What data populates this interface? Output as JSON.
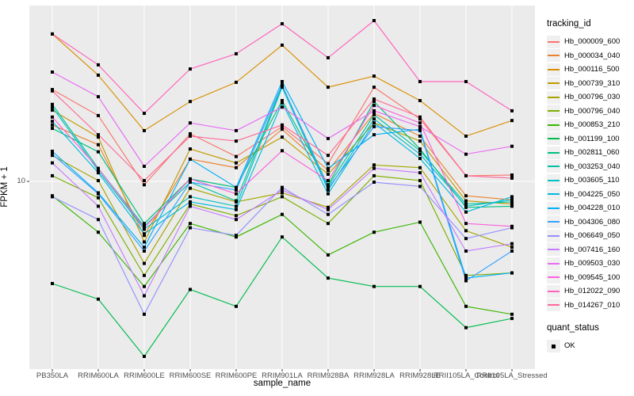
{
  "axes": {
    "x_title": "sample_name",
    "y_title": "FPKM + 1",
    "y_tick_label": "10"
  },
  "legend": {
    "tracking_title": "tracking_id",
    "quant_title": "quant_status",
    "quant_items": [
      {
        "label": "OK"
      }
    ]
  },
  "style": {
    "panel_bg": "#EBEBEB",
    "grid_color": "#FFFFFF",
    "tick_color": "#333333",
    "tick_text_color": "#4D4D4D",
    "marker_color": "#000000",
    "legend_key_bg": "#F0F0F0"
  },
  "chart_data": {
    "type": "line",
    "title": "",
    "xlabel": "sample_name",
    "ylabel": "FPKM + 1",
    "y_scale": "log10",
    "y_major_gridline_value": 10,
    "grid": "major-on-gray-panel",
    "legend_position": "right",
    "legend_title": "tracking_id",
    "point_shape": "filled-black-square",
    "quant_status_legend": {
      "title": "quant_status",
      "items": [
        "OK"
      ]
    },
    "categories": [
      "PB350LA",
      "RRIM600LA",
      "RRIM600LE",
      "RRIM600SE",
      "RRIM600PE",
      "RRIM901LA",
      "RRIM928BA",
      "RRIM928LA",
      "RRIM928LE",
      "RRII105LA_Control",
      "RRII105LA_Stressed"
    ],
    "ylim_approx": [
      1.0,
      85.0
    ],
    "series": [
      {
        "name": "Hb_000009_600",
        "color": "#F8766D",
        "values": [
          30.4,
          22.2,
          9.6,
          17.8,
          13.5,
          19.4,
          12.4,
          31.3,
          21.3,
          10.7,
          10.8
        ]
      },
      {
        "name": "Hb_000034_040",
        "color": "#EA8331",
        "values": [
          19.8,
          15.6,
          5.2,
          13.1,
          11.8,
          18.8,
          11.4,
          22.8,
          17.3,
          8.4,
          8.0
        ]
      },
      {
        "name": "Hb_000116_500",
        "color": "#D89000",
        "values": [
          59.6,
          36.2,
          18.5,
          26.3,
          33.2,
          52.1,
          31.3,
          35.8,
          26.6,
          17.3,
          20.9
        ]
      },
      {
        "name": "Hb_000739_310",
        "color": "#C09B00",
        "values": [
          23.7,
          17.1,
          4.8,
          14.8,
          12.5,
          17.1,
          10.9,
          20.3,
          16.3,
          7.9,
          7.6
        ]
      },
      {
        "name": "Hb_000796_030",
        "color": "#A3A500",
        "values": [
          13.7,
          10.1,
          3.7,
          9.2,
          7.8,
          8.7,
          7.3,
          12.2,
          11.8,
          5.5,
          4.5
        ]
      },
      {
        "name": "Hb_000796_040",
        "color": "#7CAE00",
        "values": [
          10.7,
          8.2,
          3.2,
          7.6,
          6.6,
          8.3,
          6.0,
          10.7,
          10.1,
          3.2,
          3.3
        ]
      },
      {
        "name": "Hb_000853_210",
        "color": "#39B600",
        "values": [
          8.4,
          5.4,
          2.8,
          6.0,
          5.1,
          6.7,
          4.1,
          5.4,
          6.1,
          2.2,
          2.0
        ]
      },
      {
        "name": "Hb_001199_100",
        "color": "#00BB4E",
        "values": [
          2.9,
          2.4,
          1.2,
          2.7,
          2.2,
          5.1,
          3.1,
          2.8,
          2.8,
          1.7,
          1.9
        ]
      },
      {
        "name": "Hb_002811_060",
        "color": "#00BF7D",
        "values": [
          19.0,
          14.3,
          6.0,
          10.3,
          9.3,
          26.6,
          9.6,
          26.3,
          14.8,
          7.3,
          7.4
        ]
      },
      {
        "name": "Hb_003253_040",
        "color": "#00C1A3",
        "values": [
          25.4,
          11.7,
          5.8,
          9.9,
          7.9,
          31.9,
          9.4,
          22.4,
          14.5,
          7.6,
          7.8
        ]
      },
      {
        "name": "Hb_003605_110",
        "color": "#00BFC4",
        "values": [
          24.6,
          11.4,
          5.6,
          8.3,
          7.4,
          31.3,
          9.0,
          21.3,
          13.9,
          7.4,
          8.0
        ]
      },
      {
        "name": "Hb_004225_050",
        "color": "#00BAE0",
        "values": [
          20.7,
          11.1,
          5.3,
          7.8,
          7.1,
          25.9,
          8.6,
          20.3,
          13.2,
          6.9,
          8.3
        ]
      },
      {
        "name": "Hb_004228_010",
        "color": "#00B0F6",
        "values": [
          14.4,
          8.7,
          4.5,
          13.1,
          9.3,
          33.5,
          11.7,
          17.6,
          18.8,
          3.1,
          3.3
        ]
      },
      {
        "name": "Hb_004306_080",
        "color": "#35A2FF",
        "values": [
          13.9,
          8.6,
          4.3,
          9.9,
          9.0,
          32.2,
          9.2,
          19.4,
          18.5,
          3.0,
          4.3
        ]
      },
      {
        "name": "Hb_006649_050",
        "color": "#9590FF",
        "values": [
          8.3,
          6.3,
          2.0,
          5.7,
          5.2,
          9.3,
          6.7,
          9.9,
          9.4,
          5.0,
          5.7
        ]
      },
      {
        "name": "Hb_007416_160",
        "color": "#C77CFF",
        "values": [
          12.5,
          7.4,
          2.5,
          7.4,
          6.3,
          9.0,
          7.1,
          11.7,
          11.1,
          4.3,
          4.7
        ]
      },
      {
        "name": "Hb_009503_030",
        "color": "#E76BF3",
        "values": [
          37.6,
          27.9,
          12.0,
          20.3,
          18.5,
          24.6,
          16.8,
          23.5,
          19.4,
          13.9,
          15.3
        ]
      },
      {
        "name": "Hb_009545_100",
        "color": "#FA62DB",
        "values": [
          21.8,
          11.7,
          5.7,
          10.3,
          8.6,
          14.5,
          10.1,
          25.1,
          20.3,
          6.0,
          5.8
        ]
      },
      {
        "name": "Hb_012022_090",
        "color": "#FF62BC",
        "values": [
          59.6,
          41.0,
          22.8,
          39.0,
          46.9,
          67.5,
          44.7,
          70.1,
          33.5,
          33.5,
          23.5
        ]
      },
      {
        "name": "Hb_014267_010",
        "color": "#FF6A98",
        "values": [
          29.9,
          17.6,
          10.1,
          17.3,
          16.3,
          19.8,
          13.7,
          27.1,
          21.8,
          10.7,
          10.4
        ]
      }
    ]
  }
}
